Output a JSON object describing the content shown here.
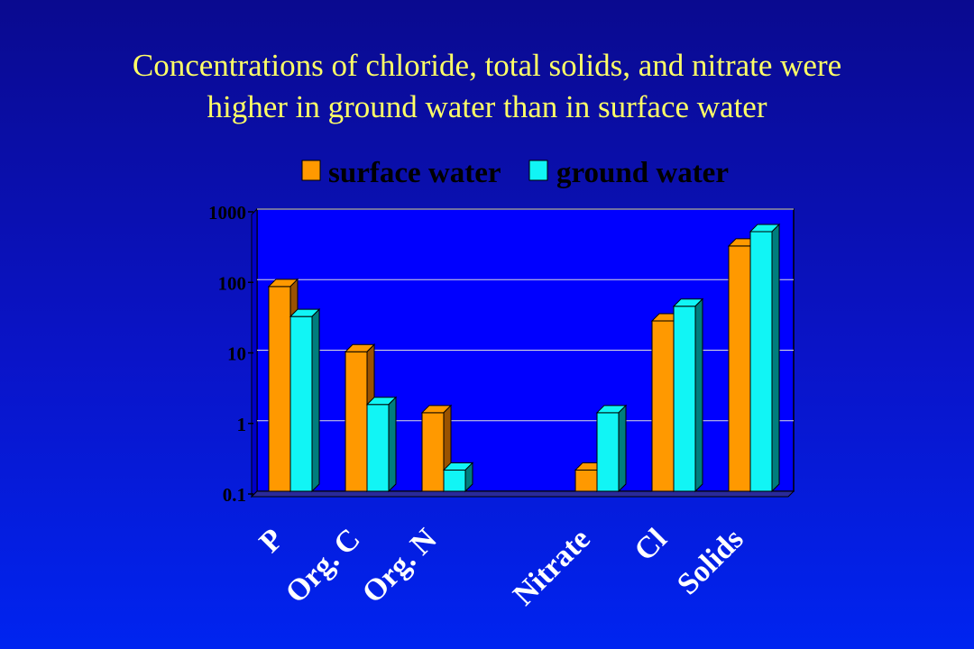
{
  "slide": {
    "title_line1": "Concentrations of chloride, total solids, and nitrate were",
    "title_line2": "higher in ground water than in surface water"
  },
  "colors": {
    "surface": "#ff9900",
    "surface_side": "#9a5200",
    "ground": "#11f5f5",
    "ground_side": "#007d7d",
    "plot_bg": "#0000ff",
    "grid": "#dddddd",
    "title": "#ffff66"
  },
  "chart_data": {
    "type": "bar",
    "scale": "log",
    "ylim": [
      0.1,
      1000
    ],
    "yticks": [
      "0.1",
      "1",
      "10",
      "100",
      "1000"
    ],
    "grid": true,
    "legend_position": "top",
    "categories": [
      "P",
      "Org. C",
      "Org. N",
      "",
      "Nitrate",
      "Cl",
      "Solids"
    ],
    "series": [
      {
        "name": "surface water",
        "values": [
          80,
          9.5,
          1.3,
          null,
          0.2,
          26,
          300
        ]
      },
      {
        "name": "ground water",
        "values": [
          30,
          1.7,
          0.2,
          null,
          1.3,
          42,
          480
        ]
      }
    ]
  }
}
